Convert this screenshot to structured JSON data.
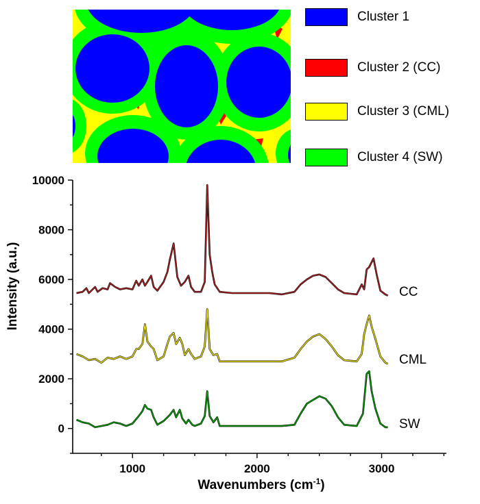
{
  "cluster_map": {
    "legend": [
      {
        "label": "Cluster 1",
        "color": "#0000ff"
      },
      {
        "label": "Cluster 2 (CC)",
        "color": "#ff0000"
      },
      {
        "label": "Cluster 3 (CML)",
        "color": "#ffff00"
      },
      {
        "label": "Cluster 4 (SW)",
        "color": "#00ff00"
      }
    ]
  },
  "chart_data": {
    "type": "line",
    "title": "",
    "xlabel": "Wavenumbers (cm",
    "xlabel_sup": "-1",
    "xlabel_end": ")",
    "ylabel": "Intensity (a.u.)",
    "xlim": [
      520,
      3520
    ],
    "ylim": [
      -1000,
      10000
    ],
    "x_ticks": [
      1000,
      2000,
      3000
    ],
    "x_tick_labels": [
      "1000",
      "2000",
      "3000"
    ],
    "y_ticks": [
      0,
      2000,
      4000,
      6000,
      8000,
      10000
    ],
    "y_tick_labels": [
      "0",
      "2000",
      "4000",
      "6000",
      "8000",
      "10000"
    ],
    "series": [
      {
        "name": "CC",
        "color": "#b22222",
        "x": [
          550,
          600,
          630,
          650,
          700,
          720,
          760,
          800,
          820,
          860,
          900,
          950,
          1000,
          1030,
          1050,
          1080,
          1100,
          1120,
          1150,
          1170,
          1200,
          1250,
          1280,
          1300,
          1330,
          1360,
          1390,
          1420,
          1450,
          1470,
          1500,
          1550,
          1580,
          1600,
          1620,
          1640,
          1660,
          1700,
          1800,
          1900,
          2000,
          2100,
          2200,
          2300,
          2350,
          2400,
          2450,
          2500,
          2550,
          2600,
          2650,
          2700,
          2800,
          2840,
          2860,
          2880,
          2900,
          2935,
          2960,
          2990,
          3030,
          3050
        ],
        "values": [
          5450,
          5500,
          5650,
          5450,
          5700,
          5500,
          5650,
          5600,
          5850,
          5700,
          5600,
          5650,
          5600,
          5950,
          5750,
          6000,
          5750,
          5900,
          6150,
          5700,
          5550,
          5900,
          6300,
          6800,
          7450,
          6100,
          5750,
          5900,
          6150,
          5700,
          5500,
          5500,
          5900,
          9800,
          7000,
          6300,
          5800,
          5500,
          5450,
          5450,
          5450,
          5450,
          5400,
          5500,
          5800,
          6000,
          6150,
          6200,
          6100,
          5850,
          5600,
          5450,
          5400,
          5800,
          5600,
          6400,
          6500,
          6850,
          6200,
          5550,
          5400,
          5350
        ]
      },
      {
        "name": "CML",
        "color": "#f5e600",
        "x": [
          550,
          600,
          650,
          700,
          750,
          800,
          850,
          900,
          950,
          1000,
          1030,
          1050,
          1080,
          1100,
          1120,
          1150,
          1170,
          1200,
          1250,
          1280,
          1300,
          1330,
          1350,
          1380,
          1400,
          1420,
          1450,
          1470,
          1500,
          1550,
          1580,
          1600,
          1620,
          1650,
          1680,
          1700,
          1800,
          1900,
          2000,
          2100,
          2200,
          2300,
          2350,
          2400,
          2450,
          2500,
          2550,
          2600,
          2650,
          2700,
          2800,
          2840,
          2860,
          2880,
          2900,
          2920,
          2950,
          2990,
          3030,
          3050
        ],
        "values": [
          3000,
          2900,
          2750,
          2800,
          2650,
          2850,
          2800,
          2900,
          2800,
          2900,
          3200,
          3200,
          3400,
          4200,
          3500,
          3300,
          3200,
          2750,
          2900,
          3400,
          3700,
          3850,
          3400,
          3650,
          3400,
          2950,
          3200,
          3000,
          2800,
          2900,
          3300,
          4800,
          3200,
          2950,
          3000,
          2700,
          2700,
          2700,
          2700,
          2700,
          2700,
          2850,
          3200,
          3500,
          3700,
          3800,
          3600,
          3300,
          2950,
          2750,
          2700,
          3000,
          3800,
          4200,
          4550,
          4100,
          3600,
          2900,
          2650,
          2600
        ]
      },
      {
        "name": "SW",
        "color": "#00aa00",
        "x": [
          550,
          600,
          650,
          700,
          750,
          800,
          850,
          900,
          950,
          1000,
          1050,
          1080,
          1100,
          1120,
          1150,
          1170,
          1200,
          1250,
          1280,
          1300,
          1330,
          1350,
          1380,
          1400,
          1430,
          1450,
          1480,
          1500,
          1550,
          1580,
          1600,
          1620,
          1650,
          1680,
          1700,
          1800,
          1900,
          2000,
          2100,
          2200,
          2300,
          2350,
          2400,
          2450,
          2500,
          2550,
          2600,
          2650,
          2700,
          2800,
          2850,
          2880,
          2900,
          2920,
          2950,
          2990,
          3030,
          3050
        ],
        "values": [
          350,
          250,
          200,
          50,
          100,
          150,
          250,
          200,
          100,
          200,
          500,
          700,
          950,
          800,
          750,
          450,
          150,
          300,
          450,
          550,
          750,
          450,
          750,
          400,
          200,
          350,
          150,
          100,
          200,
          500,
          1500,
          500,
          250,
          450,
          100,
          100,
          100,
          100,
          100,
          100,
          150,
          600,
          1000,
          1150,
          1300,
          1200,
          900,
          450,
          150,
          100,
          600,
          2200,
          2300,
          1500,
          800,
          200,
          50,
          50
        ]
      }
    ]
  }
}
